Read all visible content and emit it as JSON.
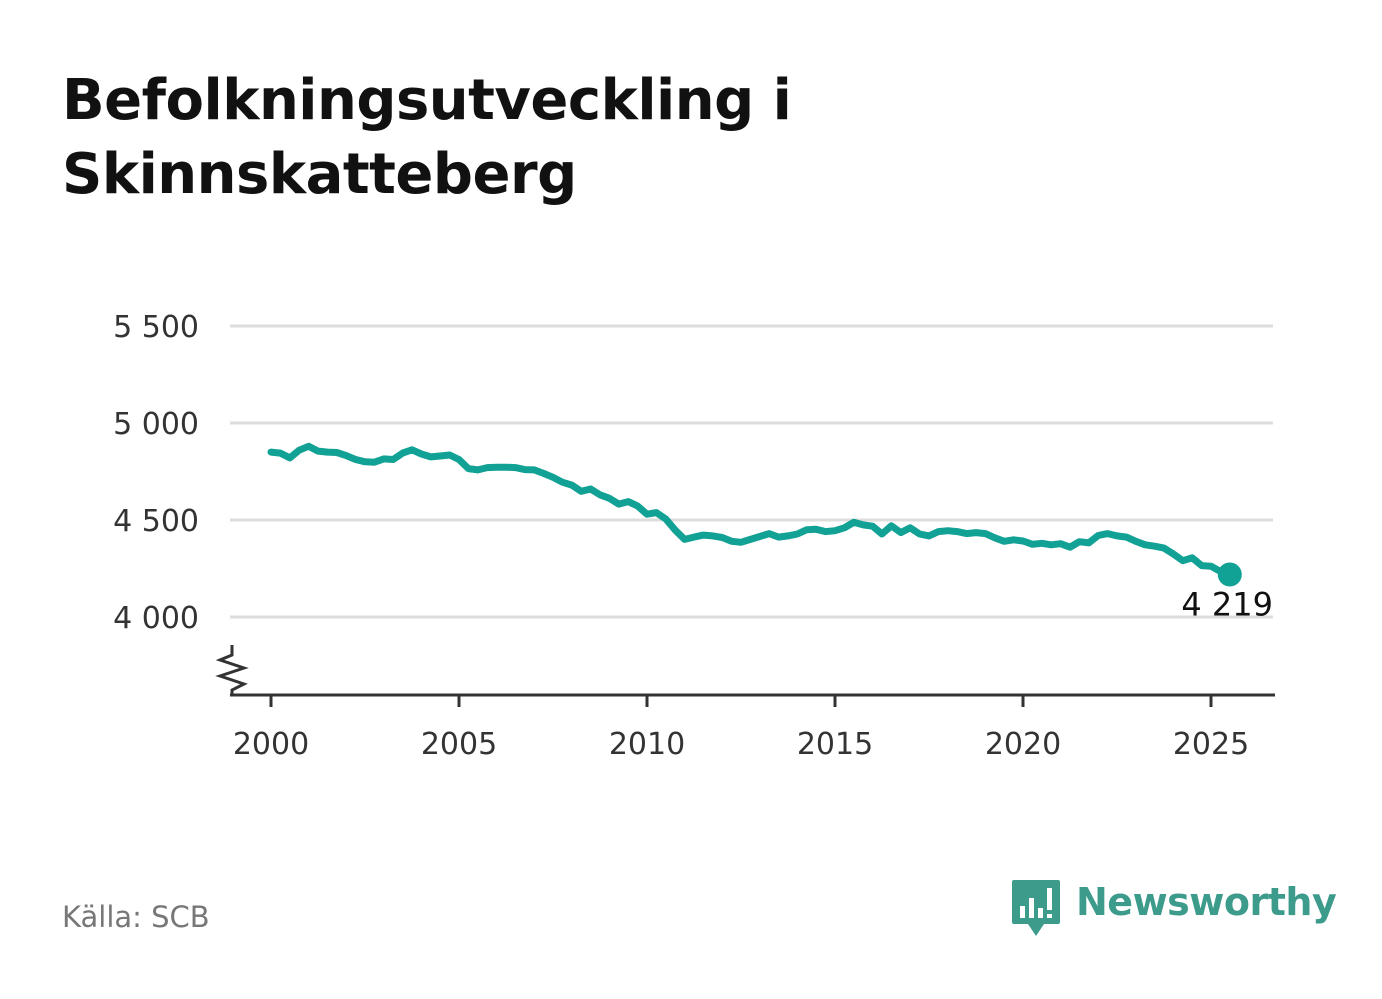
{
  "title": "Befolkningsutveckling i Skinnskatteberg",
  "source": "Källa: SCB",
  "brand": {
    "name": "Newsworthy",
    "color": "#3d9b8c",
    "icon": "bar-chart-speech-bubble-icon"
  },
  "chart_data": {
    "type": "line",
    "title": "Befolkningsutveckling i Skinnskatteberg",
    "xlabel": "",
    "ylabel": "",
    "xlim": [
      2000,
      2026.7
    ],
    "ylim": [
      3600,
      5500
    ],
    "y_axis_break": true,
    "grid": true,
    "x_ticks": [
      2000,
      2005,
      2010,
      2015,
      2020,
      2025
    ],
    "x_tick_labels": [
      "2000",
      "2005",
      "2010",
      "2015",
      "2020",
      "2025"
    ],
    "y_ticks": [
      4000,
      4500,
      5000,
      5500
    ],
    "y_tick_labels": [
      "4 000",
      "4 500",
      "5 000",
      "5 500"
    ],
    "line_color": "#12a195",
    "end_label": "4 219",
    "series": [
      {
        "x": [
          2000.0,
          2000.25,
          2000.5,
          2000.75,
          2001.0,
          2001.25,
          2001.5,
          2001.75,
          2002.0,
          2002.25,
          2002.5,
          2002.75,
          2003.0,
          2003.25,
          2003.5,
          2003.75,
          2004.0,
          2004.25,
          2004.5,
          2004.75,
          2005.0,
          2005.25,
          2005.5,
          2005.75,
          2006.0,
          2006.25,
          2006.5,
          2006.75,
          2007.0,
          2007.25,
          2007.5,
          2007.75,
          2008.0,
          2008.25,
          2008.5,
          2008.75,
          2009.0,
          2009.25,
          2009.5,
          2009.75,
          2010.0,
          2010.25,
          2010.5,
          2010.75,
          2011.0,
          2011.25,
          2011.5,
          2011.75,
          2012.0,
          2012.25,
          2012.5,
          2012.75,
          2013.0,
          2013.25,
          2013.5,
          2013.75,
          2014.0,
          2014.25,
          2014.5,
          2014.75,
          2015.0,
          2015.25,
          2015.5,
          2015.75,
          2016.0,
          2016.25,
          2016.5,
          2016.75,
          2017.0,
          2017.25,
          2017.5,
          2017.75,
          2018.0,
          2018.25,
          2018.5,
          2018.75,
          2019.0,
          2019.25,
          2019.5,
          2019.75,
          2020.0,
          2020.25,
          2020.5,
          2020.75,
          2021.0,
          2021.25,
          2021.5,
          2021.75,
          2022.0,
          2022.25,
          2022.5,
          2022.75,
          2023.0,
          2023.25,
          2023.5,
          2023.75,
          2024.0,
          2024.25,
          2024.5,
          2024.75,
          2025.0,
          2025.25,
          2025.5
        ],
        "y": [
          4850,
          4845,
          4820,
          4860,
          4880,
          4855,
          4850,
          4848,
          4832,
          4812,
          4800,
          4798,
          4815,
          4812,
          4845,
          4862,
          4840,
          4825,
          4830,
          4835,
          4812,
          4765,
          4758,
          4770,
          4772,
          4772,
          4770,
          4760,
          4758,
          4740,
          4720,
          4695,
          4680,
          4648,
          4660,
          4630,
          4612,
          4582,
          4595,
          4572,
          4530,
          4538,
          4505,
          4448,
          4400,
          4412,
          4422,
          4418,
          4410,
          4390,
          4385,
          4400,
          4415,
          4430,
          4412,
          4418,
          4428,
          4450,
          4452,
          4440,
          4445,
          4460,
          4488,
          4475,
          4468,
          4428,
          4470,
          4435,
          4460,
          4428,
          4418,
          4440,
          4445,
          4440,
          4430,
          4435,
          4430,
          4408,
          4390,
          4398,
          4392,
          4375,
          4380,
          4372,
          4378,
          4360,
          4388,
          4382,
          4420,
          4430,
          4418,
          4412,
          4390,
          4372,
          4365,
          4355,
          4325,
          4290,
          4305,
          4265,
          4262,
          4235,
          4219
        ]
      }
    ]
  }
}
